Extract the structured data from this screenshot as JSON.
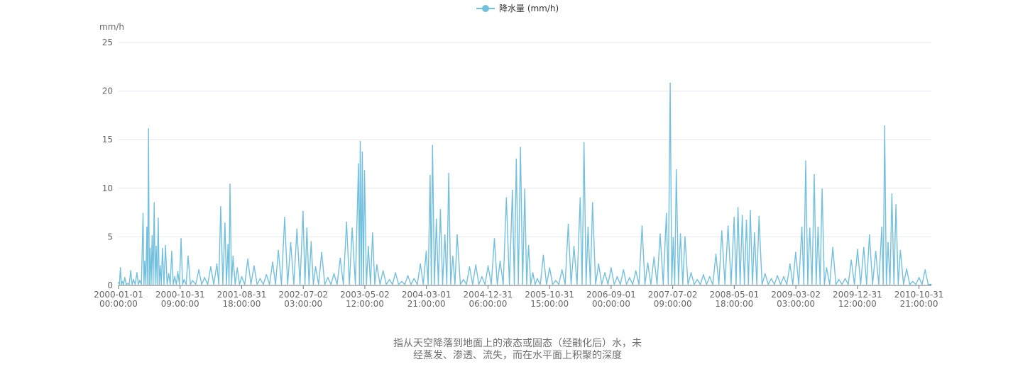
{
  "legend": {
    "label": "降水量 (mm/h)",
    "color": "#73c0de"
  },
  "yaxis": {
    "unit": "mm/h",
    "ticks": [
      0,
      5,
      10,
      15,
      20,
      25
    ]
  },
  "xaxis": {
    "ticks": [
      {
        "date": "2000-01-01",
        "time": "00:00:00"
      },
      {
        "date": "2000-10-31",
        "time": "09:00:00"
      },
      {
        "date": "2001-08-31",
        "time": "18:00:00"
      },
      {
        "date": "2002-07-02",
        "time": "03:00:00"
      },
      {
        "date": "2003-05-02",
        "time": "12:00:00"
      },
      {
        "date": "2004-03-01",
        "time": "21:00:00"
      },
      {
        "date": "2004-12-31",
        "time": "06:00:00"
      },
      {
        "date": "2005-10-31",
        "time": "15:00:00"
      },
      {
        "date": "2006-09-01",
        "time": "00:00:00"
      },
      {
        "date": "2007-07-02",
        "time": "09:00:00"
      },
      {
        "date": "2008-05-01",
        "time": "18:00:00"
      },
      {
        "date": "2009-03-02",
        "time": "03:00:00"
      },
      {
        "date": "2009-12-31",
        "time": "12:00:00"
      },
      {
        "date": "2010-10-31",
        "time": "21:00:00"
      }
    ]
  },
  "caption": {
    "line1": "指从天空降落到地面上的液态或固态（经融化后）水，未",
    "line2": "经蒸发、渗透、流失，而在水平面上积聚的深度"
  },
  "chart_data": {
    "type": "line",
    "title": "",
    "ylabel": "mm/h",
    "ylim": [
      0,
      25
    ],
    "x_start": "2000-01-01 00:00:00",
    "x_end": "2010-12-31 23:00:00",
    "grid": true,
    "legend_position": "top-center",
    "series": [
      {
        "name": "降水量 (mm/h)",
        "color": "#73c0de",
        "points": [
          [
            "2000-01-01",
            0.3
          ],
          [
            "2000-01-10",
            1.8
          ],
          [
            "2000-01-20",
            0.4
          ],
          [
            "2000-02-01",
            0.8
          ],
          [
            "2000-02-15",
            0.2
          ],
          [
            "2000-03-01",
            1.5
          ],
          [
            "2000-03-15",
            0.6
          ],
          [
            "2000-04-01",
            1.3
          ],
          [
            "2000-04-15",
            0.5
          ],
          [
            "2000-05-01",
            7.4
          ],
          [
            "2000-05-10",
            2.5
          ],
          [
            "2000-05-20",
            6.0
          ],
          [
            "2000-05-28",
            16.1
          ],
          [
            "2000-06-05",
            3.8
          ],
          [
            "2000-06-15",
            5.1
          ],
          [
            "2000-06-25",
            8.5
          ],
          [
            "2000-07-05",
            4.0
          ],
          [
            "2000-07-15",
            6.9
          ],
          [
            "2000-07-25",
            2.0
          ],
          [
            "2000-08-05",
            3.8
          ],
          [
            "2000-08-20",
            4.1
          ],
          [
            "2000-09-05",
            1.2
          ],
          [
            "2000-09-20",
            3.5
          ],
          [
            "2000-10-05",
            0.9
          ],
          [
            "2000-10-20",
            1.4
          ],
          [
            "2000-11-05",
            4.8
          ],
          [
            "2000-11-20",
            0.6
          ],
          [
            "2000-12-10",
            3.0
          ],
          [
            "2001-01-01",
            0.5
          ],
          [
            "2001-02-01",
            1.6
          ],
          [
            "2001-03-01",
            0.8
          ],
          [
            "2001-04-01",
            1.9
          ],
          [
            "2001-05-01",
            2.2
          ],
          [
            "2001-05-20",
            8.1
          ],
          [
            "2001-06-10",
            6.4
          ],
          [
            "2001-06-25",
            4.2
          ],
          [
            "2001-07-05",
            10.4
          ],
          [
            "2001-07-20",
            3.0
          ],
          [
            "2001-08-10",
            1.8
          ],
          [
            "2001-09-01",
            0.9
          ],
          [
            "2001-10-01",
            2.7
          ],
          [
            "2001-11-01",
            2.0
          ],
          [
            "2001-12-01",
            0.7
          ],
          [
            "2002-01-01",
            1.1
          ],
          [
            "2002-02-01",
            2.4
          ],
          [
            "2002-03-01",
            3.6
          ],
          [
            "2002-04-01",
            7.0
          ],
          [
            "2002-05-01",
            4.4
          ],
          [
            "2002-06-01",
            5.8
          ],
          [
            "2002-07-01",
            7.6
          ],
          [
            "2002-07-20",
            5.9
          ],
          [
            "2002-08-10",
            4.5
          ],
          [
            "2002-09-01",
            1.9
          ],
          [
            "2002-10-01",
            3.4
          ],
          [
            "2002-11-01",
            0.8
          ],
          [
            "2002-12-01",
            1.2
          ],
          [
            "2003-01-01",
            2.8
          ],
          [
            "2003-02-01",
            6.5
          ],
          [
            "2003-03-01",
            5.9
          ],
          [
            "2003-04-01",
            12.5
          ],
          [
            "2003-04-10",
            14.8
          ],
          [
            "2003-04-20",
            13.7
          ],
          [
            "2003-05-01",
            11.8
          ],
          [
            "2003-05-20",
            4.0
          ],
          [
            "2003-06-10",
            5.4
          ],
          [
            "2003-07-01",
            2.1
          ],
          [
            "2003-08-01",
            1.5
          ],
          [
            "2003-09-01",
            0.6
          ],
          [
            "2003-10-01",
            1.3
          ],
          [
            "2003-11-01",
            0.4
          ],
          [
            "2003-12-01",
            1.0
          ],
          [
            "2004-01-01",
            0.7
          ],
          [
            "2004-02-01",
            2.2
          ],
          [
            "2004-03-01",
            3.5
          ],
          [
            "2004-03-20",
            11.3
          ],
          [
            "2004-04-01",
            14.4
          ],
          [
            "2004-04-20",
            6.8
          ],
          [
            "2004-05-10",
            7.8
          ],
          [
            "2004-06-01",
            5.2
          ],
          [
            "2004-06-20",
            11.5
          ],
          [
            "2004-07-10",
            3.0
          ],
          [
            "2004-08-01",
            5.2
          ],
          [
            "2004-09-01",
            0.6
          ],
          [
            "2004-10-01",
            1.9
          ],
          [
            "2004-11-01",
            2.1
          ],
          [
            "2004-12-01",
            0.9
          ],
          [
            "2005-01-01",
            2.0
          ],
          [
            "2005-02-01",
            4.8
          ],
          [
            "2005-03-01",
            2.5
          ],
          [
            "2005-04-01",
            9.0
          ],
          [
            "2005-05-01",
            9.8
          ],
          [
            "2005-05-20",
            13.0
          ],
          [
            "2005-06-10",
            14.2
          ],
          [
            "2005-07-01",
            9.9
          ],
          [
            "2005-07-20",
            4.1
          ],
          [
            "2005-08-10",
            1.3
          ],
          [
            "2005-09-01",
            0.7
          ],
          [
            "2005-10-01",
            3.1
          ],
          [
            "2005-11-01",
            1.8
          ],
          [
            "2005-12-01",
            0.5
          ],
          [
            "2006-01-01",
            1.6
          ],
          [
            "2006-02-01",
            6.3
          ],
          [
            "2006-03-01",
            4.0
          ],
          [
            "2006-04-01",
            9.0
          ],
          [
            "2006-04-20",
            14.7
          ],
          [
            "2006-05-10",
            6.0
          ],
          [
            "2006-06-01",
            8.5
          ],
          [
            "2006-07-01",
            2.2
          ],
          [
            "2006-08-01",
            1.3
          ],
          [
            "2006-09-01",
            1.8
          ],
          [
            "2006-10-01",
            0.9
          ],
          [
            "2006-11-01",
            1.6
          ],
          [
            "2006-12-01",
            0.8
          ],
          [
            "2007-01-01",
            1.5
          ],
          [
            "2007-02-01",
            6.1
          ],
          [
            "2007-03-01",
            2.3
          ],
          [
            "2007-04-01",
            2.9
          ],
          [
            "2007-05-01",
            5.3
          ],
          [
            "2007-06-01",
            7.4
          ],
          [
            "2007-06-20",
            20.8
          ],
          [
            "2007-07-05",
            4.9
          ],
          [
            "2007-07-20",
            11.9
          ],
          [
            "2007-08-10",
            5.3
          ],
          [
            "2007-09-01",
            5.0
          ],
          [
            "2007-10-01",
            1.3
          ],
          [
            "2007-11-01",
            0.6
          ],
          [
            "2007-12-01",
            1.1
          ],
          [
            "2008-01-01",
            0.9
          ],
          [
            "2008-02-01",
            3.2
          ],
          [
            "2008-03-01",
            5.6
          ],
          [
            "2008-04-01",
            6.1
          ],
          [
            "2008-05-01",
            7.0
          ],
          [
            "2008-05-20",
            8.0
          ],
          [
            "2008-06-10",
            7.2
          ],
          [
            "2008-07-01",
            6.7
          ],
          [
            "2008-07-20",
            7.7
          ],
          [
            "2008-08-10",
            5.4
          ],
          [
            "2008-09-01",
            7.1
          ],
          [
            "2008-10-01",
            1.2
          ],
          [
            "2008-11-01",
            0.7
          ],
          [
            "2008-12-01",
            1.0
          ],
          [
            "2009-01-01",
            0.9
          ],
          [
            "2009-02-01",
            2.2
          ],
          [
            "2009-03-01",
            3.4
          ],
          [
            "2009-04-01",
            6.0
          ],
          [
            "2009-04-20",
            12.8
          ],
          [
            "2009-05-10",
            5.9
          ],
          [
            "2009-06-01",
            11.4
          ],
          [
            "2009-06-20",
            6.0
          ],
          [
            "2009-07-10",
            9.9
          ],
          [
            "2009-08-01",
            1.8
          ],
          [
            "2009-09-01",
            3.9
          ],
          [
            "2009-10-01",
            0.6
          ],
          [
            "2009-11-01",
            0.7
          ],
          [
            "2009-12-01",
            2.6
          ],
          [
            "2010-01-01",
            3.7
          ],
          [
            "2010-02-01",
            3.9
          ],
          [
            "2010-03-01",
            5.2
          ],
          [
            "2010-04-01",
            3.5
          ],
          [
            "2010-05-01",
            6.0
          ],
          [
            "2010-05-15",
            16.4
          ],
          [
            "2010-06-01",
            4.4
          ],
          [
            "2010-06-20",
            9.4
          ],
          [
            "2010-07-10",
            8.3
          ],
          [
            "2010-08-01",
            3.6
          ],
          [
            "2010-09-01",
            1.7
          ],
          [
            "2010-10-01",
            0.4
          ],
          [
            "2010-11-01",
            0.8
          ],
          [
            "2010-12-01",
            1.6
          ],
          [
            "2010-12-31",
            0.1
          ]
        ]
      }
    ]
  }
}
